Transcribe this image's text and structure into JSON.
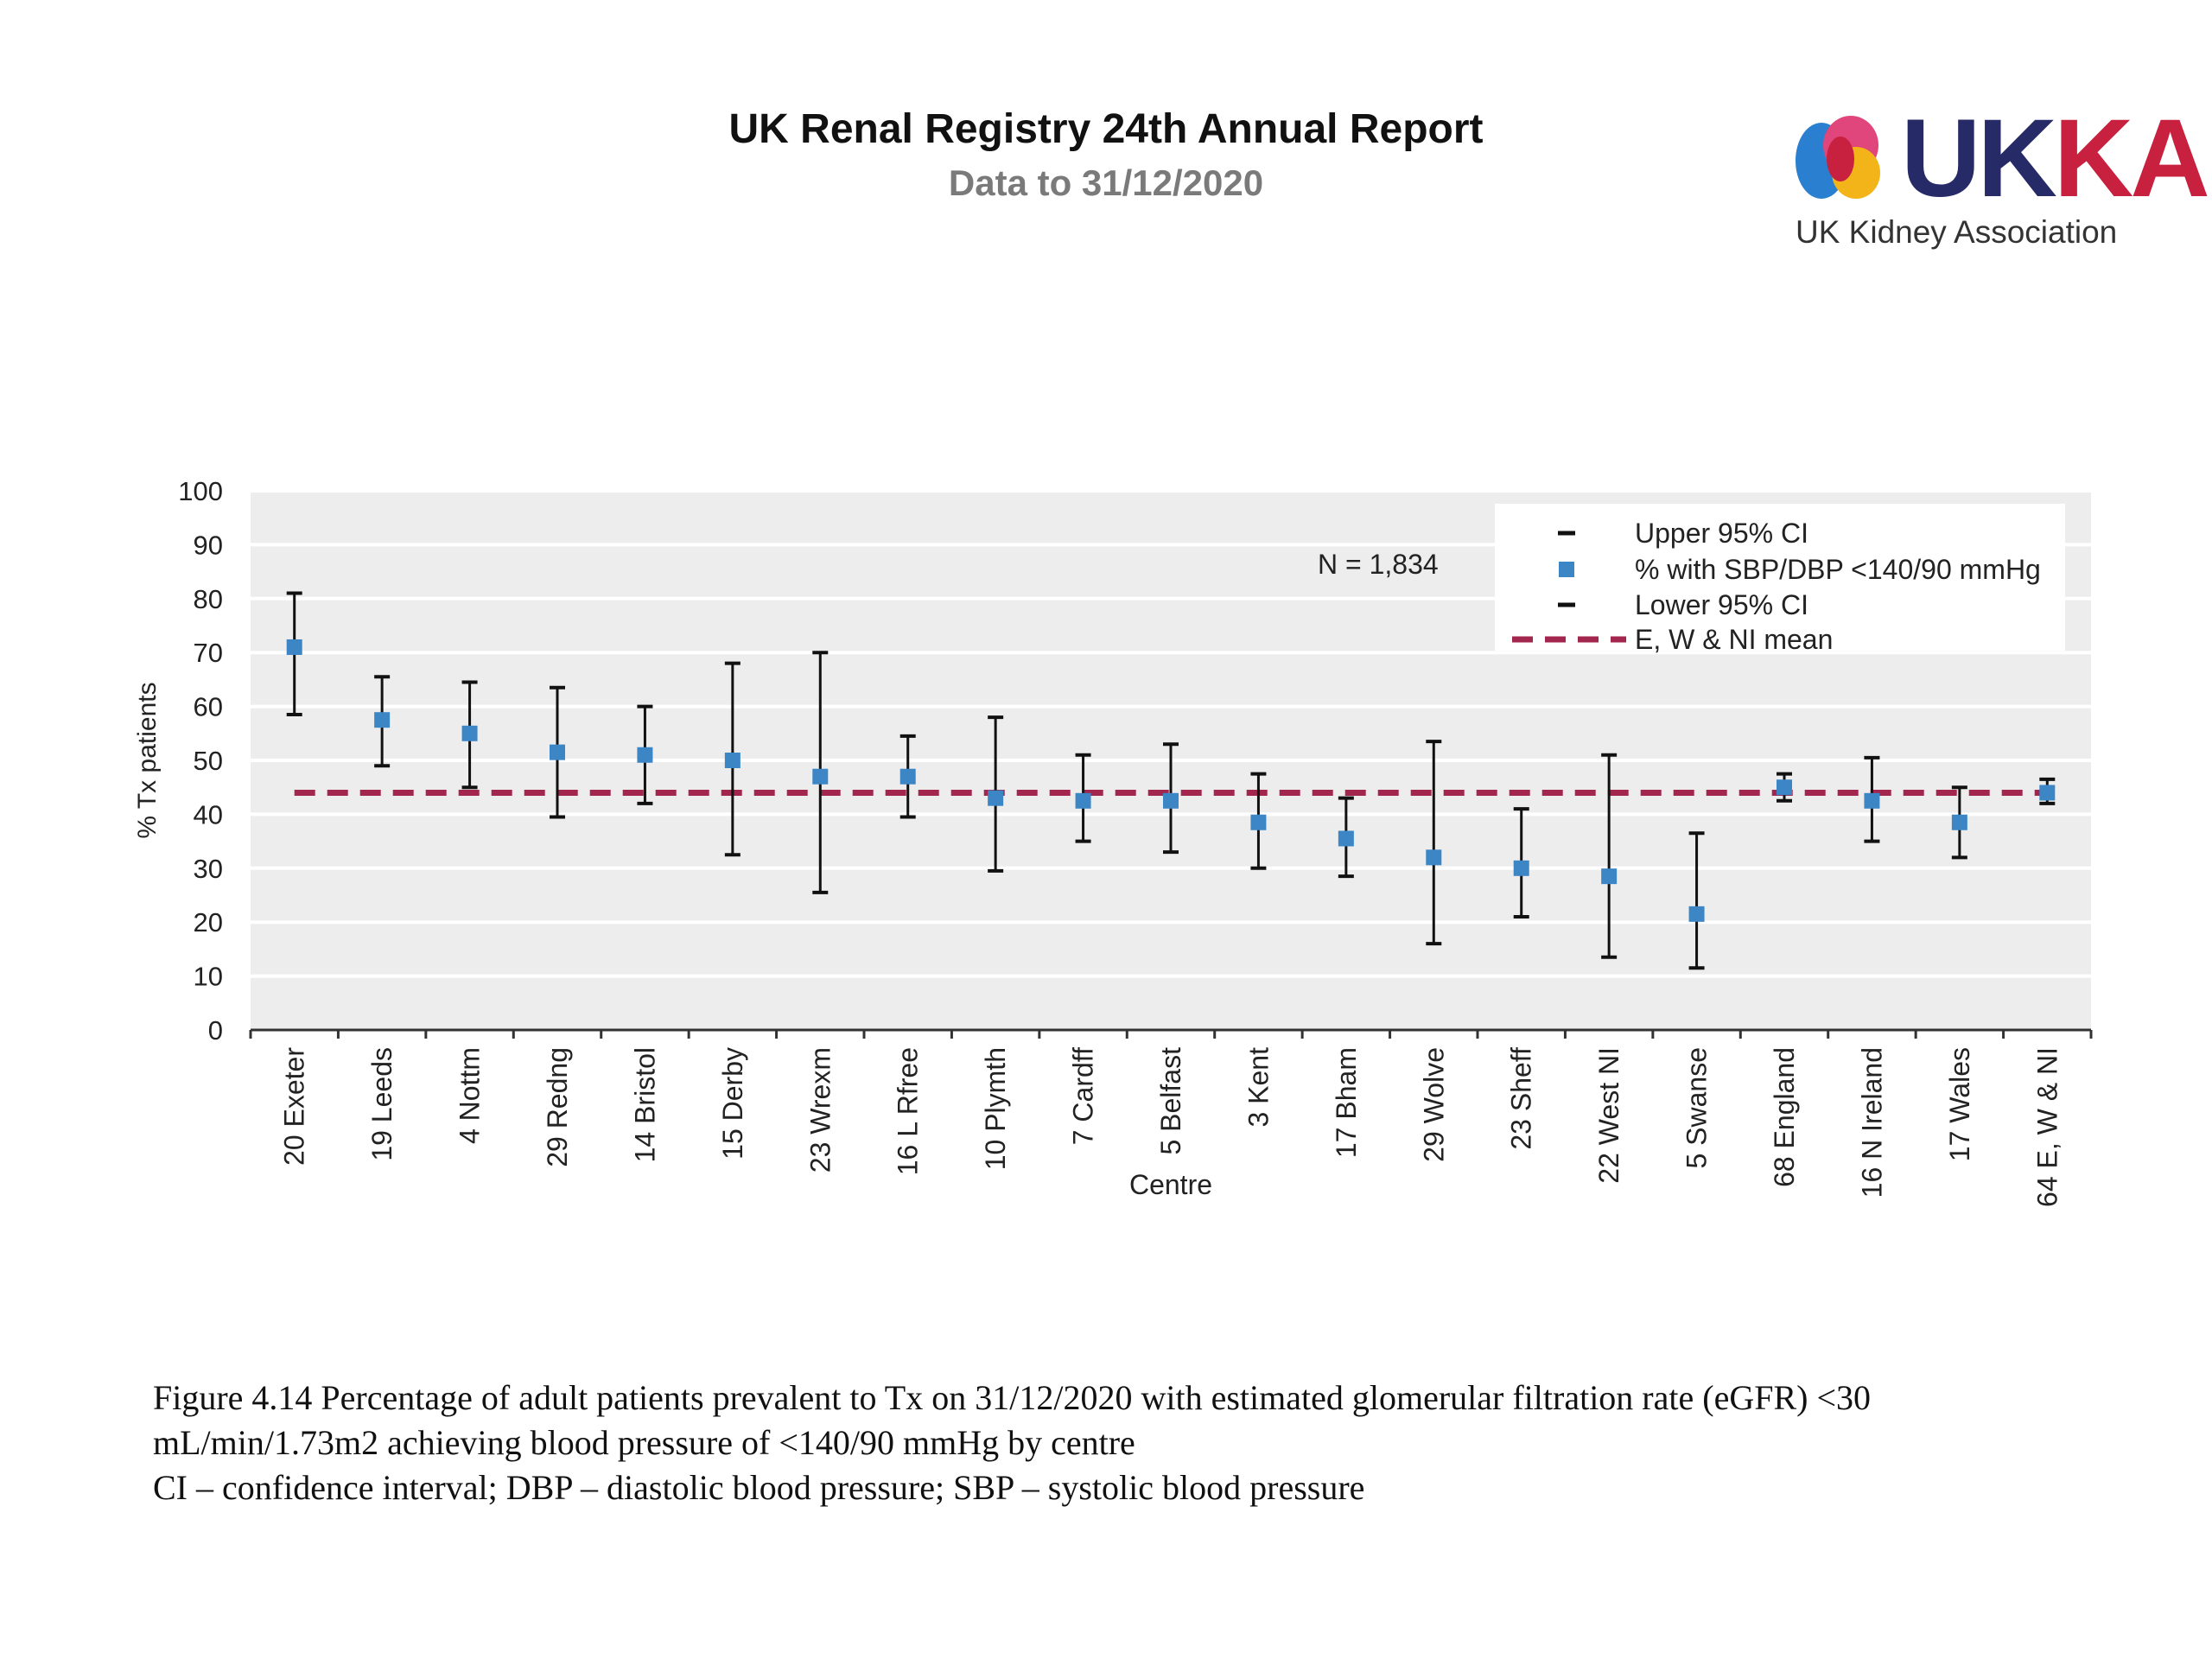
{
  "header": {
    "title": "UK Renal Registry 24th Annual Report",
    "subtitle": "Data to 31/12/2020"
  },
  "logo": {
    "wordmark_uk": "UK",
    "wordmark_ka": "KA",
    "tagline": "UK Kidney Association",
    "colors": {
      "navy": "#262a66",
      "red": "#c8203f",
      "yellow": "#f2b418",
      "blue": "#2a7fd0",
      "pink": "#e0457b"
    }
  },
  "chart_data": {
    "type": "scatter",
    "xlabel": "Centre",
    "ylabel": "% Tx patients",
    "ylim": [
      0,
      100
    ],
    "yticks": [
      0,
      10,
      20,
      30,
      40,
      50,
      60,
      70,
      80,
      90,
      100
    ],
    "annotation": "N = 1,834",
    "grid": true,
    "legend_position": "top-right",
    "legend": {
      "upper": "Upper 95% CI",
      "point": "% with SBP/DBP <140/90 mmHg",
      "lower": "Lower 95% CI",
      "mean": "E, W & NI mean"
    },
    "mean": 44,
    "colors": {
      "point": "#3d86c6",
      "ci": "#111111",
      "mean": "#a3264f",
      "plot_bg": "#ededed"
    },
    "categories": [
      "20 Exeter",
      "19 Leeds",
      "4 Nottm",
      "29 Redng",
      "14 Bristol",
      "15 Derby",
      "23 Wrexm",
      "16 L Rfree",
      "10 Plymth",
      "7 Cardff",
      "5 Belfast",
      "3 Kent",
      "17 Bham",
      "29 Wolve",
      "23 Sheff",
      "22 West NI",
      "5 Swanse",
      "68 England",
      "16 N Ireland",
      "17 Wales",
      "64 E, W & NI"
    ],
    "series": [
      {
        "name": "% with SBP/DBP <140/90 mmHg",
        "values": [
          71,
          57.5,
          55,
          51.5,
          51,
          50,
          47,
          47,
          43,
          42.5,
          42.5,
          38.5,
          35.5,
          32,
          30,
          28.5,
          21.5,
          45,
          42.5,
          38.5,
          44
        ]
      },
      {
        "name": "Upper 95% CI",
        "values": [
          81,
          65.5,
          64.5,
          63.5,
          60,
          68,
          70,
          54.5,
          58,
          51,
          53,
          47.5,
          43,
          53.5,
          41,
          51,
          36.5,
          47.5,
          50.5,
          45,
          46.5
        ]
      },
      {
        "name": "Lower 95% CI",
        "values": [
          58.5,
          49,
          45,
          39.5,
          42,
          32.5,
          25.5,
          39.5,
          29.5,
          35,
          33,
          30,
          28.5,
          16,
          21,
          13.5,
          11.5,
          42.5,
          35,
          32,
          42
        ]
      }
    ]
  },
  "caption": {
    "line1": "Figure 4.14 Percentage of adult patients prevalent to Tx on 31/12/2020 with estimated glomerular filtration rate (eGFR) <30",
    "line2": "mL/min/1.73m2 achieving blood pressure of <140/90 mmHg by centre",
    "line3": "CI – confidence interval; DBP – diastolic blood pressure; SBP – systolic blood pressure"
  }
}
